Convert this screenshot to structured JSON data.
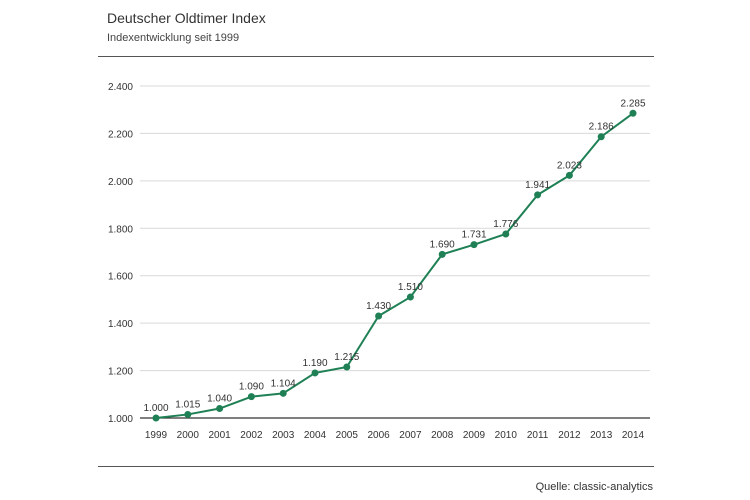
{
  "header": {
    "title": "Deutscher Oldtimer Index",
    "subtitle": "Indexentwicklung seit 1999"
  },
  "footer": {
    "source": "Quelle: classic-analytics"
  },
  "colors": {
    "line": "#1e8054",
    "grid": "#d9d9d9",
    "axis": "#333333",
    "text": "#333333"
  },
  "chart_data": {
    "type": "line",
    "title": "Deutscher Oldtimer Index",
    "subtitle": "Indexentwicklung seit 1999",
    "xlabel": "",
    "ylabel": "",
    "x": [
      "1999",
      "2000",
      "2001",
      "2002",
      "2003",
      "2004",
      "2005",
      "2006",
      "2007",
      "2008",
      "2009",
      "2010",
      "2011",
      "2012",
      "2013",
      "2014"
    ],
    "series": [
      {
        "values": [
          1000,
          1015,
          1040,
          1090,
          1104,
          1190,
          1215,
          1430,
          1510,
          1690,
          1731,
          1776,
          1941,
          2023,
          2186,
          2285
        ],
        "labels": [
          "1.000",
          "1.015",
          "1.040",
          "1.090",
          "1.104",
          "1.190",
          "1.215",
          "1.430",
          "1.510",
          "1.690",
          "1.731",
          "1.776",
          "1.941",
          "2.023",
          "2.186",
          "2.285"
        ]
      }
    ],
    "ylim": [
      1000,
      2400
    ],
    "yticks": [
      1000,
      1200,
      1400,
      1600,
      1800,
      2000,
      2200,
      2400
    ],
    "ytick_labels": [
      "1.000",
      "1.200",
      "1.400",
      "1.600",
      "1.800",
      "2.000",
      "2.200",
      "2.400"
    ],
    "grid": true,
    "legend": "none"
  }
}
